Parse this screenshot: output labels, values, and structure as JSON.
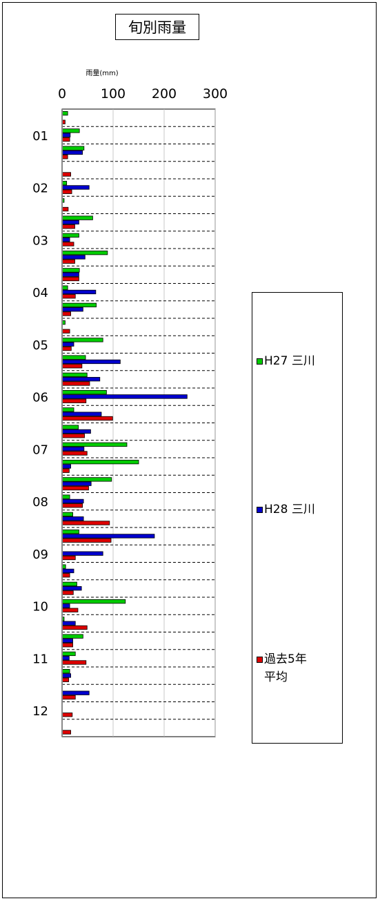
{
  "chart_data": {
    "type": "bar",
    "orientation": "horizontal",
    "title": "旬別雨量",
    "xlabel": "雨量(mm)",
    "ylabel": "",
    "xlim": [
      0,
      300
    ],
    "xticks": [
      0,
      100,
      200,
      300
    ],
    "month_labels": [
      "01",
      "02",
      "03",
      "04",
      "05",
      "06",
      "07",
      "08",
      "09",
      "10",
      "11",
      "12"
    ],
    "periods_per_month": 3,
    "legend_position": "right",
    "series": [
      {
        "name": "H27 三川",
        "color": "#00cc00",
        "values": [
          11,
          34,
          43,
          0,
          9,
          4,
          60,
          33,
          89,
          34,
          11,
          67,
          6,
          80,
          46,
          49,
          87,
          23,
          32,
          127,
          150,
          97,
          15,
          21,
          33,
          0,
          7,
          29,
          124,
          4,
          41,
          26,
          15,
          0,
          0,
          0
        ]
      },
      {
        "name": "H28 三川",
        "color": "#0000cc",
        "values": [
          0,
          16,
          40,
          0,
          53,
          0,
          33,
          15,
          45,
          33,
          66,
          41,
          0,
          23,
          114,
          74,
          245,
          77,
          56,
          43,
          17,
          57,
          42,
          42,
          181,
          80,
          23,
          38,
          15,
          26,
          21,
          14,
          17,
          53,
          0,
          0
        ]
      },
      {
        "name": "過去5年\n平均",
        "color": "#dd0000",
        "values": [
          6,
          15,
          11,
          17,
          19,
          12,
          25,
          23,
          25,
          33,
          26,
          17,
          15,
          18,
          39,
          54,
          47,
          99,
          44,
          49,
          14,
          52,
          40,
          93,
          96,
          26,
          15,
          22,
          31,
          49,
          21,
          47,
          13,
          26,
          20,
          17
        ]
      }
    ]
  }
}
